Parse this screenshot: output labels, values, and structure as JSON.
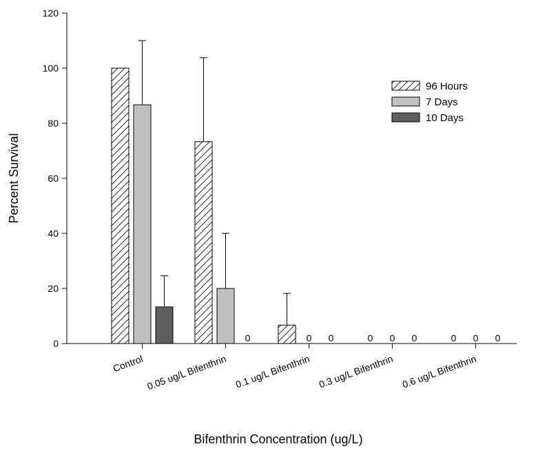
{
  "chart_data": {
    "type": "bar",
    "title": "",
    "xlabel": "Bifenthrin Concentration (ug/L)",
    "ylabel": "Percent Survival",
    "ylim": [
      0,
      120
    ],
    "yticks": [
      0,
      20,
      40,
      60,
      80,
      100,
      120
    ],
    "categories": [
      "Control",
      "0.05 ug/L Bifenthrin",
      "0.1 ug/L Bifenthrin",
      "0.3 ug/L Bifenthrin",
      "0.6 ug/L Bifenthrin"
    ],
    "series": [
      {
        "name": "96 Hours",
        "fill": "hatch",
        "color": "#ffffff",
        "values": [
          100,
          73.3,
          6.7,
          0,
          0
        ],
        "error": [
          0,
          30.5,
          11.5,
          null,
          null
        ]
      },
      {
        "name": "7 Days",
        "fill": "solid",
        "color": "#c0c0c0",
        "values": [
          86.7,
          20,
          0,
          0,
          0
        ],
        "error": [
          23.3,
          20,
          null,
          null,
          null
        ]
      },
      {
        "name": "10 Days",
        "fill": "solid",
        "color": "#606060",
        "values": [
          13.3,
          0,
          0,
          0,
          0
        ],
        "error": [
          11.3,
          null,
          null,
          null,
          null
        ]
      }
    ],
    "zero_label": "0",
    "legend_position": "top-right",
    "grid": false
  }
}
